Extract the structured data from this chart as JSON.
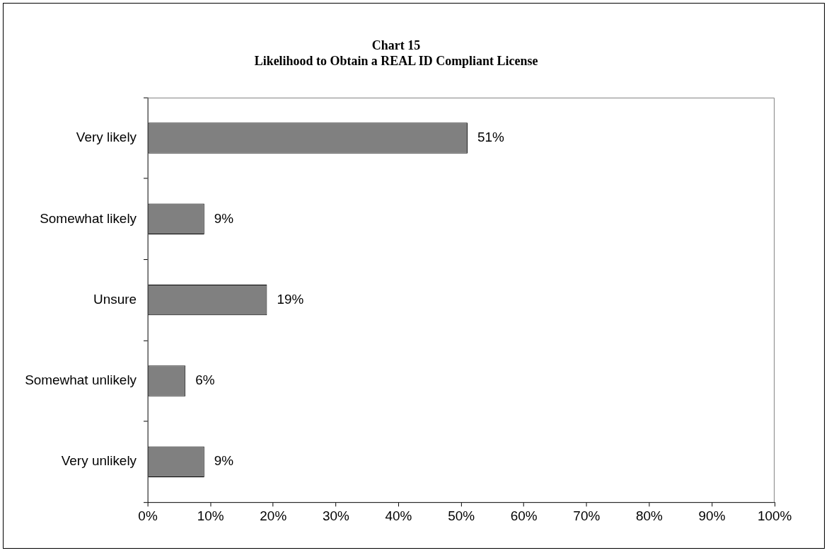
{
  "chart_data": {
    "type": "bar",
    "orientation": "horizontal",
    "title": [
      "Chart 15",
      "Likelihood to Obtain a REAL ID Compliant License"
    ],
    "categories": [
      "Very likely",
      "Somewhat likely",
      "Unsure",
      "Somewhat unlikely",
      "Very unlikely"
    ],
    "values": [
      51,
      9,
      19,
      6,
      9
    ],
    "value_labels": [
      "51%",
      "9%",
      "19%",
      "6%",
      "9%"
    ],
    "color": "#808080",
    "xlim": [
      0,
      100
    ],
    "xticks": [
      {
        "value": 0,
        "label": "0%"
      },
      {
        "value": 10,
        "label": "10%"
      },
      {
        "value": 20,
        "label": "20%"
      },
      {
        "value": 30,
        "label": "30%"
      },
      {
        "value": 40,
        "label": "40%"
      },
      {
        "value": 50,
        "label": "50%"
      },
      {
        "value": 60,
        "label": "60%"
      },
      {
        "value": 70,
        "label": "70%"
      },
      {
        "value": 80,
        "label": "80%"
      },
      {
        "value": 90,
        "label": "90%"
      },
      {
        "value": 100,
        "label": "100%"
      }
    ],
    "grid": false,
    "legend": false
  }
}
